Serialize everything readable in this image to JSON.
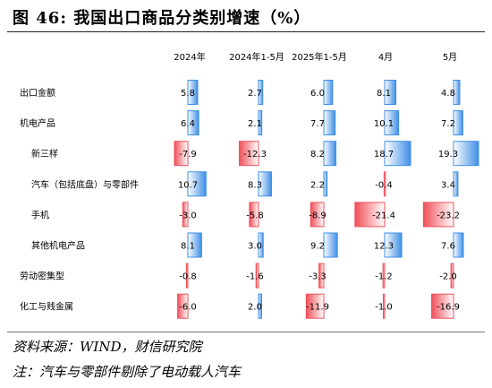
{
  "title": "图 46:  我国出口商品分类别增速（%）",
  "source": "资料来源：WIND，财信研究院",
  "note": "注：汽车与零部件剔除了电动载人汽车",
  "colors": {
    "positive": "#3f8fe6",
    "negative": "#f0505a"
  },
  "chart_data": {
    "type": "table",
    "columns": [
      "2024年",
      "2024年1-5月",
      "2025年1-5月",
      "4月",
      "5月"
    ],
    "rows": [
      {
        "label": "出口金额",
        "indent": false,
        "values": [
          5.8,
          2.7,
          6.0,
          8.1,
          4.8
        ]
      },
      {
        "label": "机电产品",
        "indent": false,
        "values": [
          6.4,
          2.1,
          7.7,
          10.1,
          7.2
        ]
      },
      {
        "label": "新三样",
        "indent": true,
        "values": [
          -7.9,
          -12.3,
          8.2,
          18.7,
          19.3
        ]
      },
      {
        "label": "汽车（包括底盘）与零部件",
        "indent": true,
        "values": [
          10.7,
          8.3,
          2.2,
          -0.4,
          3.4
        ]
      },
      {
        "label": "手机",
        "indent": true,
        "values": [
          -3.0,
          -5.8,
          -8.9,
          -21.4,
          -23.2
        ]
      },
      {
        "label": "其他机电产品",
        "indent": true,
        "values": [
          8.1,
          3.0,
          9.2,
          12.3,
          7.6
        ]
      },
      {
        "label": "劳动密集型",
        "indent": false,
        "values": [
          -0.8,
          -1.6,
          -3.3,
          -1.2,
          -2.0
        ]
      },
      {
        "label": "化工与贱金属",
        "indent": false,
        "values": [
          -6.0,
          2.0,
          -11.9,
          -1.0,
          -16.9
        ]
      }
    ]
  }
}
